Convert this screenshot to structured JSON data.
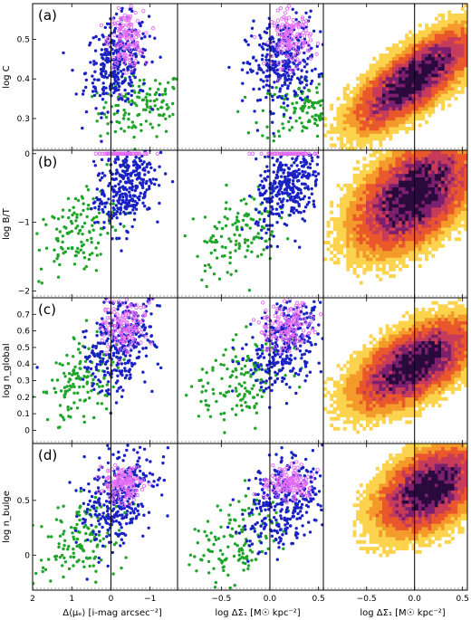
{
  "chart_data": {
    "type": "scatter",
    "grid": false,
    "legend": "none",
    "colors": {
      "green": "#1fa62a",
      "blue": "#1a22c4",
      "magenta": "#e36cf5",
      "heat_low": "#fcd34d",
      "heat_mid": "#e9572b",
      "heat_high": "#2a0a3c"
    },
    "column_xlabels": [
      "Δ⟨μₑ⟩ [i-mag arcsec⁻²]",
      "log ΔΣ₁ [M☉ kpc⁻²]",
      "log ΔΣ₁ [M☉ kpc⁻²]"
    ],
    "column_xticks": [
      {
        "values": [
          2,
          1,
          0,
          -1
        ],
        "labels": [
          "2",
          "1",
          "0",
          "−1"
        ],
        "xlim": [
          2.0,
          -1.7
        ]
      },
      {
        "values": [
          -0.5,
          0.0,
          0.5
        ],
        "labels": [
          "−0.5",
          "0.0",
          "0.5"
        ],
        "xlim": [
          -0.95,
          0.55
        ]
      },
      {
        "values": [
          -0.5,
          0.0,
          0.5
        ],
        "labels": [
          "−0.5",
          "0.0",
          "0.5"
        ],
        "xlim": [
          -0.95,
          0.55
        ]
      }
    ],
    "rows": [
      {
        "letter": "(a)",
        "ylabel": "log C",
        "ylim": [
          0.22,
          0.59
        ],
        "yticks": [
          0.3,
          0.4,
          0.5
        ],
        "ytick_labels": [
          "0.3",
          "0.4",
          "0.5"
        ],
        "series": [
          {
            "color": "green",
            "center": [
              0.4,
              0.33
            ],
            "spread": [
              0.25,
              0.04
            ],
            "trend": 0.03,
            "n": 130
          },
          {
            "color": "blue",
            "center": [
              0.12,
              0.44
            ],
            "spread": [
              0.18,
              0.055
            ],
            "trend": 0.06,
            "n": 330
          },
          {
            "color": "magenta",
            "center": [
              0.22,
              0.5
            ],
            "spread": [
              0.1,
              0.035
            ],
            "trend": 0.0,
            "n": 140
          }
        ],
        "heatmap": {
          "center": [
            0.0,
            0.4
          ],
          "spread": [
            0.35,
            0.07
          ],
          "corr": 0.75
        }
      },
      {
        "letter": "(b)",
        "ylabel": "log B/T",
        "ylim": [
          -2.1,
          0.05
        ],
        "yticks": [
          -2,
          -1,
          0
        ],
        "ytick_labels": [
          "−2",
          "−1",
          "0"
        ],
        "series": [
          {
            "color": "green",
            "center": [
              -0.35,
              -1.15
            ],
            "spread": [
              0.22,
              0.3
            ],
            "trend": 0.5,
            "n": 130
          },
          {
            "color": "blue",
            "center": [
              0.2,
              -0.5
            ],
            "spread": [
              0.17,
              0.3
            ],
            "trend": 0.7,
            "n": 330
          },
          {
            "color": "magenta",
            "center": [
              0.2,
              0.0
            ],
            "spread": [
              0.15,
              0.0
            ],
            "trend": 0.0,
            "n": 80
          }
        ],
        "heatmap": {
          "center": [
            0.0,
            -0.6
          ],
          "spread": [
            0.35,
            0.45
          ],
          "corr": 0.5
        }
      },
      {
        "letter": "(c)",
        "ylabel": "log n_global",
        "ylim": [
          -0.08,
          0.8
        ],
        "yticks": [
          0.0,
          0.1,
          0.2,
          0.3,
          0.4,
          0.5,
          0.6,
          0.7
        ],
        "ytick_labels": [
          "0",
          "0.1",
          "0.2",
          "0.3",
          "0.4",
          "0.5",
          "0.6",
          "0.7"
        ],
        "series": [
          {
            "color": "green",
            "center": [
              -0.3,
              0.3
            ],
            "spread": [
              0.22,
              0.12
            ],
            "trend": 0.2,
            "n": 130
          },
          {
            "color": "blue",
            "center": [
              0.15,
              0.52
            ],
            "spread": [
              0.2,
              0.13
            ],
            "trend": 0.25,
            "n": 330
          },
          {
            "color": "magenta",
            "center": [
              0.2,
              0.63
            ],
            "spread": [
              0.13,
              0.08
            ],
            "trend": 0.0,
            "n": 140
          }
        ],
        "heatmap": {
          "center": [
            0.0,
            0.4
          ],
          "spread": [
            0.35,
            0.15
          ],
          "corr": 0.6
        }
      },
      {
        "letter": "(d)",
        "ylabel": "log n_bulge",
        "ylim": [
          -0.32,
          1.02
        ],
        "yticks": [
          0.0,
          0.5
        ],
        "ytick_labels": [
          "0",
          "0.5"
        ],
        "series": [
          {
            "color": "green",
            "center": [
              -0.35,
              0.12
            ],
            "spread": [
              0.22,
              0.2
            ],
            "trend": 0.3,
            "n": 130
          },
          {
            "color": "blue",
            "center": [
              0.15,
              0.5
            ],
            "spread": [
              0.2,
              0.2
            ],
            "trend": 0.4,
            "n": 330
          },
          {
            "color": "magenta",
            "center": [
              0.2,
              0.65
            ],
            "spread": [
              0.12,
              0.08
            ],
            "trend": 0.0,
            "n": 140
          }
        ],
        "heatmap": {
          "center": [
            0.15,
            0.6
          ],
          "spread": [
            0.3,
            0.22
          ],
          "corr": 0.45
        }
      }
    ]
  }
}
